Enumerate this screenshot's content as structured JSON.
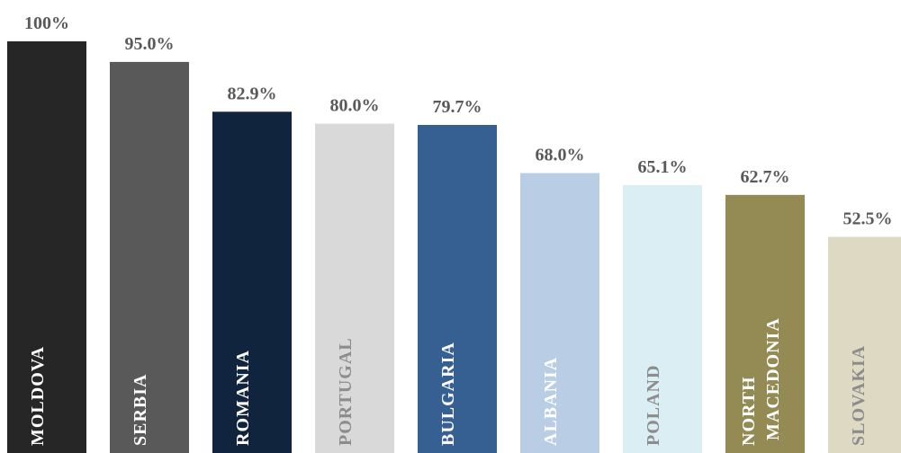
{
  "chart_data": {
    "type": "bar",
    "categories": [
      "MOLDOVA",
      "SERBIA",
      "ROMANIA",
      "PORTUGAL",
      "BULGARIA",
      "ALBANIA",
      "POLAND",
      "NORTH MACEDONIA",
      "SLOVAKIA"
    ],
    "values": [
      100,
      95.0,
      82.9,
      80.0,
      79.7,
      68.0,
      65.1,
      62.7,
      52.5
    ],
    "value_labels": [
      "100%",
      "95.0%",
      "82.9%",
      "80.0%",
      "79.7%",
      "68.0%",
      "65.1%",
      "62.7%",
      "52.5%"
    ],
    "colors": [
      "#262626",
      "#595959",
      "#10243e",
      "#d9d9d9",
      "#376092",
      "#b9cde5",
      "#dbeef4",
      "#948a54",
      "#ddd9c3"
    ],
    "label_colors": [
      "#ffffff",
      "#ffffff",
      "#ffffff",
      "#8c8c8c",
      "#ffffff",
      "#ffffff",
      "#8c8c8c",
      "#ffffff",
      "#8c8c8c"
    ]
  }
}
